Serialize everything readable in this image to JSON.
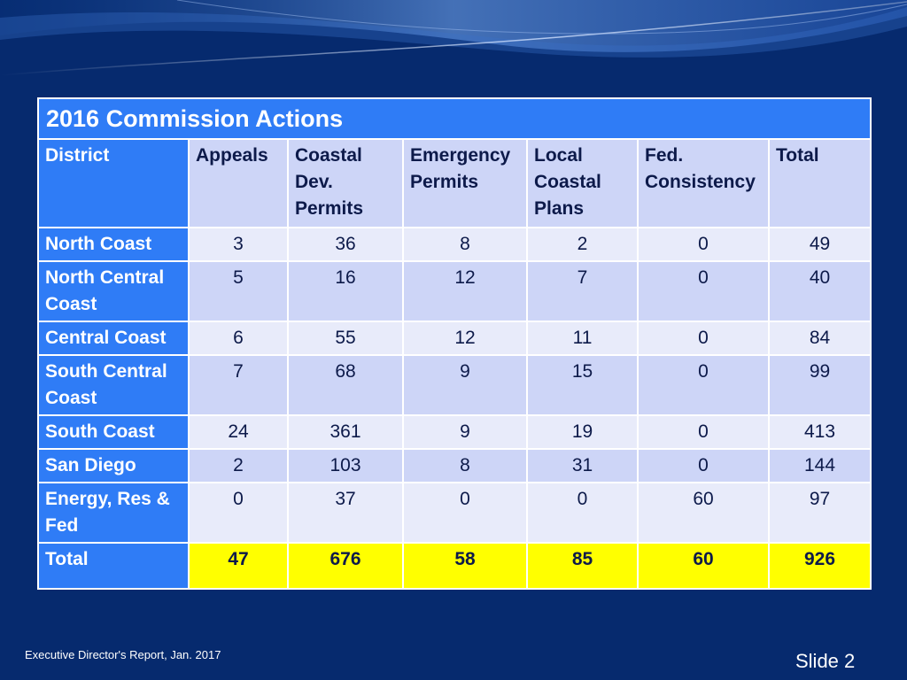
{
  "table": {
    "title": "2016 Commission Actions",
    "headers": [
      "District",
      "Appeals",
      "Coastal Dev. Permits",
      "Emergency Permits",
      "Local Coastal Plans",
      "Fed. Consistency",
      "Total"
    ],
    "rows": [
      {
        "district": "North Coast",
        "appeals": "3",
        "coastal_dev": "36",
        "emergency": "8",
        "local_coastal": "2",
        "fed_consistency": "0",
        "total": "49"
      },
      {
        "district": "North Central Coast",
        "appeals": "5",
        "coastal_dev": "16",
        "emergency": "12",
        "local_coastal": "7",
        "fed_consistency": "0",
        "total": "40"
      },
      {
        "district": "Central Coast",
        "appeals": "6",
        "coastal_dev": "55",
        "emergency": "12",
        "local_coastal": "11",
        "fed_consistency": "0",
        "total": "84"
      },
      {
        "district": "South Central Coast",
        "appeals": "7",
        "coastal_dev": "68",
        "emergency": "9",
        "local_coastal": "15",
        "fed_consistency": "0",
        "total": "99"
      },
      {
        "district": "South Coast",
        "appeals": "24",
        "coastal_dev": "361",
        "emergency": "9",
        "local_coastal": "19",
        "fed_consistency": "0",
        "total": "413"
      },
      {
        "district": "San Diego",
        "appeals": "2",
        "coastal_dev": "103",
        "emergency": "8",
        "local_coastal": "31",
        "fed_consistency": "0",
        "total": "144"
      },
      {
        "district": "Energy, Res & Fed",
        "appeals": "0",
        "coastal_dev": "37",
        "emergency": "0",
        "local_coastal": "0",
        "fed_consistency": "60",
        "total": "97"
      }
    ],
    "totals": {
      "label": "Total",
      "appeals": "47",
      "coastal_dev": "676",
      "emergency": "58",
      "local_coastal": "85",
      "fed_consistency": "60",
      "total": "926"
    }
  },
  "footer": {
    "text": "Executive Director's Report, Jan. 2017",
    "slide": "Slide 2"
  },
  "colors": {
    "background": "#062a6e",
    "header_blue": "#2f7cf6",
    "light_row": "#e8ebfa",
    "dark_row": "#cdd5f7",
    "total_yellow": "#ffff00"
  }
}
